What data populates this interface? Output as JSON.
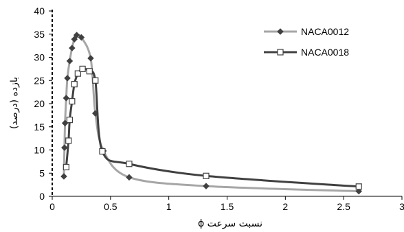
{
  "chart_data": {
    "type": "line",
    "xlabel": "نسبت سرعت ϕ",
    "ylabel": "بازده (درصد)",
    "xlim": [
      0,
      3
    ],
    "ylim": [
      0,
      40
    ],
    "x_ticks": [
      "0",
      "0.5",
      "1",
      "1.5",
      "2",
      "2.5",
      "3"
    ],
    "y_ticks": [
      "0",
      "5",
      "10",
      "15",
      "20",
      "25",
      "30",
      "35",
      "40"
    ],
    "grid": false,
    "legend_position": "top-right",
    "series": [
      {
        "name": "NACA0012",
        "color": "#a6a6a6",
        "marker": "diamond",
        "marker_color": "#404040",
        "points": [
          [
            0.1,
            4.3
          ],
          [
            0.105,
            10.5
          ],
          [
            0.11,
            15.8
          ],
          [
            0.12,
            21.2
          ],
          [
            0.13,
            25.5
          ],
          [
            0.15,
            29.2
          ],
          [
            0.17,
            32
          ],
          [
            0.19,
            33.9
          ],
          [
            0.21,
            34.8
          ],
          [
            0.25,
            34.3
          ],
          [
            0.33,
            29.8
          ],
          [
            0.37,
            17.9
          ],
          [
            0.44,
            9.8
          ],
          [
            0.66,
            4.1
          ],
          [
            1.32,
            2.2
          ],
          [
            2.63,
            1.1
          ]
        ]
      },
      {
        "name": "NACA0018",
        "color": "#404040",
        "marker": "square",
        "marker_color": "#ffffff",
        "points": [
          [
            0.12,
            6.3
          ],
          [
            0.14,
            12
          ],
          [
            0.15,
            16.5
          ],
          [
            0.17,
            20.5
          ],
          [
            0.19,
            24.2
          ],
          [
            0.22,
            26.5
          ],
          [
            0.26,
            27.5
          ],
          [
            0.32,
            27
          ],
          [
            0.37,
            25
          ],
          [
            0.43,
            9.7
          ],
          [
            0.66,
            7
          ],
          [
            1.32,
            4.4
          ],
          [
            2.63,
            2.1
          ]
        ]
      }
    ]
  }
}
